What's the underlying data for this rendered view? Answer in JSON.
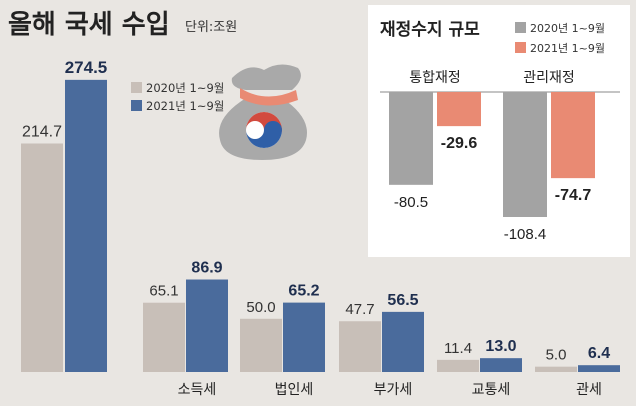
{
  "title": "올해 국세 수입",
  "unit": "단위:조원",
  "colors": {
    "bg": "#e9e6e2",
    "y2020": "#c8bfb8",
    "y2021": "#4a6b9c",
    "panel_bg": "#ffffff",
    "fiscal2020": "#a3a3a3",
    "fiscal2021": "#e98a73",
    "baseline": "#888888"
  },
  "chart_data": [
    {
      "type": "bar",
      "title": "올해 국세 수입",
      "subtitle": "단위:조원",
      "series": [
        {
          "name": "2020년 1~9월",
          "values": [
            214.7
          ]
        },
        {
          "name": "2021년 1~9월",
          "values": [
            274.5
          ]
        }
      ],
      "ylim": [
        0,
        280
      ],
      "grid": false,
      "legend": "top-center"
    },
    {
      "type": "bar",
      "categories": [
        "소득세",
        "법인세",
        "부가세",
        "교통세",
        "관세"
      ],
      "series": [
        {
          "name": "2020년 1~9월",
          "values": [
            65.1,
            50.0,
            47.7,
            11.4,
            5.0
          ]
        },
        {
          "name": "2021년 1~9월",
          "values": [
            86.9,
            65.2,
            56.5,
            13.0,
            6.4
          ]
        }
      ],
      "ylim": [
        0,
        280
      ],
      "grid": false
    },
    {
      "type": "bar",
      "title": "재정수지 규모",
      "categories": [
        "통합재정",
        "관리재정"
      ],
      "series": [
        {
          "name": "2020년 1~9월",
          "values": [
            -80.5,
            -108.4
          ]
        },
        {
          "name": "2021년 1~9월",
          "values": [
            -29.6,
            -74.7
          ]
        }
      ],
      "ylim": [
        -115,
        0
      ],
      "grid": false,
      "legend": "top-right"
    }
  ]
}
